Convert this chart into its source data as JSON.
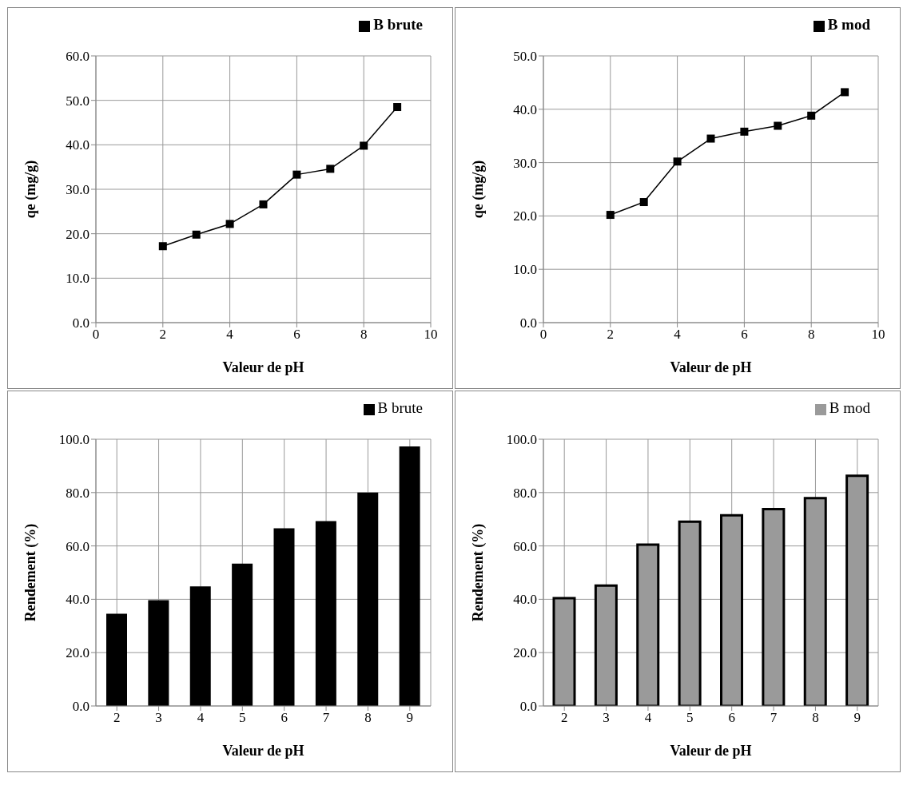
{
  "chart_data": [
    {
      "type": "line",
      "xlabel": "Valeur de pH",
      "ylabel": "qe (mg/g)",
      "x": [
        2,
        3,
        4,
        5,
        6,
        7,
        8,
        9
      ],
      "series": [
        {
          "name": "B brute",
          "color": "#000000",
          "values": [
            17.2,
            19.8,
            22.2,
            26.6,
            33.3,
            34.6,
            39.8,
            48.5
          ]
        }
      ],
      "xlim": [
        0,
        10
      ],
      "xticks": [
        0,
        2,
        4,
        6,
        8,
        10
      ],
      "ylim": [
        0,
        60
      ],
      "yticks": [
        {
          "value": 0,
          "label": "0.0"
        },
        {
          "value": 10,
          "label": "10.0"
        },
        {
          "value": 20,
          "label": "20.0"
        },
        {
          "value": 30,
          "label": "30.0"
        },
        {
          "value": 40,
          "label": "40.0"
        },
        {
          "value": 50,
          "label": "50.0"
        },
        {
          "value": 60,
          "label": "60.0"
        }
      ],
      "grid": true,
      "legend": "top right",
      "marker": "square",
      "line_style": "solid"
    },
    {
      "type": "line",
      "xlabel": "Valeur de pH",
      "ylabel": "qe (mg/g)",
      "x": [
        2,
        3,
        4,
        5,
        6,
        7,
        8,
        9
      ],
      "series": [
        {
          "name": "B mod",
          "color": "#000000",
          "values": [
            20.2,
            22.6,
            30.2,
            34.5,
            35.8,
            36.9,
            38.8,
            43.2
          ]
        }
      ],
      "xlim": [
        0,
        10
      ],
      "xticks": [
        0,
        2,
        4,
        6,
        8,
        10
      ],
      "ylim": [
        0,
        50
      ],
      "yticks": [
        {
          "value": 0,
          "label": "0.0"
        },
        {
          "value": 10,
          "label": "10.0"
        },
        {
          "value": 20,
          "label": "20.0"
        },
        {
          "value": 30,
          "label": "30.0"
        },
        {
          "value": 40,
          "label": "40.0"
        },
        {
          "value": 50,
          "label": "50.0"
        }
      ],
      "grid": true,
      "legend": "top right",
      "marker": "square",
      "line_style": "solid"
    },
    {
      "type": "bar",
      "xlabel": "Valeur de pH",
      "ylabel": "Rendement (%)",
      "categories": [
        "2",
        "3",
        "4",
        "5",
        "6",
        "7",
        "8",
        "9"
      ],
      "series": [
        {
          "name": "B brute",
          "color": "#000000",
          "values": [
            34.6,
            39.7,
            44.8,
            53.4,
            66.6,
            69.3,
            80.0,
            97.3
          ]
        }
      ],
      "ylim": [
        0,
        100
      ],
      "yticks": [
        {
          "value": 0,
          "label": "0.0"
        },
        {
          "value": 20,
          "label": "20.0"
        },
        {
          "value": 40,
          "label": "40.0"
        },
        {
          "value": 60,
          "label": "60.0"
        },
        {
          "value": 80,
          "label": "80.0"
        },
        {
          "value": 100,
          "label": "100.0"
        }
      ],
      "grid": true,
      "legend": "top right"
    },
    {
      "type": "bar",
      "xlabel": "Valeur de pH",
      "ylabel": "Rendement (%)",
      "categories": [
        "2",
        "3",
        "4",
        "5",
        "6",
        "7",
        "8",
        "9"
      ],
      "series": [
        {
          "name": "B mod",
          "color": "#9a9a9a",
          "values": [
            40.4,
            45.1,
            60.5,
            69.1,
            71.5,
            73.8,
            77.9,
            86.3
          ]
        }
      ],
      "ylim": [
        0,
        100
      ],
      "yticks": [
        {
          "value": 0,
          "label": "0.0"
        },
        {
          "value": 20,
          "label": "20.0"
        },
        {
          "value": 40,
          "label": "40.0"
        },
        {
          "value": 60,
          "label": "60.0"
        },
        {
          "value": 80,
          "label": "80.0"
        },
        {
          "value": 100,
          "label": "100.0"
        }
      ],
      "grid": true,
      "legend": "top right"
    }
  ]
}
